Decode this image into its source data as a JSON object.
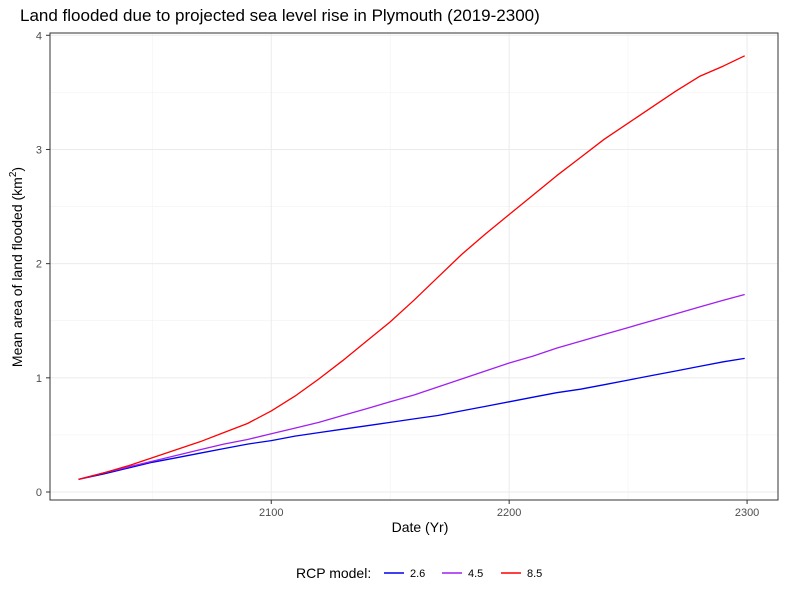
{
  "chart_data": {
    "type": "line",
    "title": "Land flooded due to projected sea level rise in Plymouth (2019-2300)",
    "xlabel": "Date (Yr)",
    "ylabel": "Mean area of land flooded (km",
    "ylabel_superscript": "2",
    "ylabel_close": ")",
    "xlim": [
      2007,
      2313
    ],
    "ylim": [
      -0.07,
      4.02
    ],
    "x_ticks": [
      2100,
      2200,
      2300
    ],
    "y_ticks": [
      0,
      1,
      2,
      3,
      4
    ],
    "grid": true,
    "legend": {
      "title": "RCP model:",
      "position": "bottom"
    },
    "series": [
      {
        "name": "2.6",
        "color": "#0000ee",
        "x": [
          2019,
          2030,
          2040,
          2050,
          2060,
          2070,
          2080,
          2090,
          2100,
          2110,
          2120,
          2130,
          2140,
          2150,
          2160,
          2170,
          2180,
          2190,
          2200,
          2210,
          2220,
          2230,
          2240,
          2250,
          2260,
          2270,
          2280,
          2290,
          2299
        ],
        "values": [
          0.11,
          0.16,
          0.21,
          0.26,
          0.3,
          0.34,
          0.38,
          0.42,
          0.45,
          0.49,
          0.52,
          0.55,
          0.58,
          0.61,
          0.64,
          0.67,
          0.71,
          0.75,
          0.79,
          0.83,
          0.87,
          0.9,
          0.94,
          0.98,
          1.02,
          1.06,
          1.1,
          1.14,
          1.17
        ]
      },
      {
        "name": "4.5",
        "color": "#a020f0",
        "x": [
          2019,
          2030,
          2040,
          2050,
          2060,
          2070,
          2080,
          2090,
          2100,
          2110,
          2120,
          2130,
          2140,
          2150,
          2160,
          2170,
          2180,
          2190,
          2200,
          2210,
          2220,
          2230,
          2240,
          2250,
          2260,
          2270,
          2280,
          2290,
          2299
        ],
        "values": [
          0.11,
          0.17,
          0.22,
          0.27,
          0.32,
          0.37,
          0.42,
          0.46,
          0.51,
          0.56,
          0.61,
          0.67,
          0.73,
          0.79,
          0.85,
          0.92,
          0.99,
          1.06,
          1.13,
          1.19,
          1.26,
          1.32,
          1.38,
          1.44,
          1.5,
          1.56,
          1.62,
          1.68,
          1.73
        ]
      },
      {
        "name": "8.5",
        "color": "#ff0000",
        "x": [
          2019,
          2030,
          2040,
          2050,
          2060,
          2070,
          2080,
          2090,
          2100,
          2110,
          2120,
          2130,
          2140,
          2150,
          2160,
          2170,
          2180,
          2190,
          2200,
          2210,
          2220,
          2230,
          2240,
          2250,
          2260,
          2270,
          2280,
          2290,
          2299
        ],
        "values": [
          0.11,
          0.17,
          0.23,
          0.3,
          0.37,
          0.44,
          0.52,
          0.6,
          0.71,
          0.84,
          0.99,
          1.15,
          1.32,
          1.49,
          1.68,
          1.88,
          2.08,
          2.26,
          2.43,
          2.6,
          2.77,
          2.93,
          3.09,
          3.23,
          3.37,
          3.51,
          3.64,
          3.73,
          3.82
        ]
      }
    ]
  }
}
